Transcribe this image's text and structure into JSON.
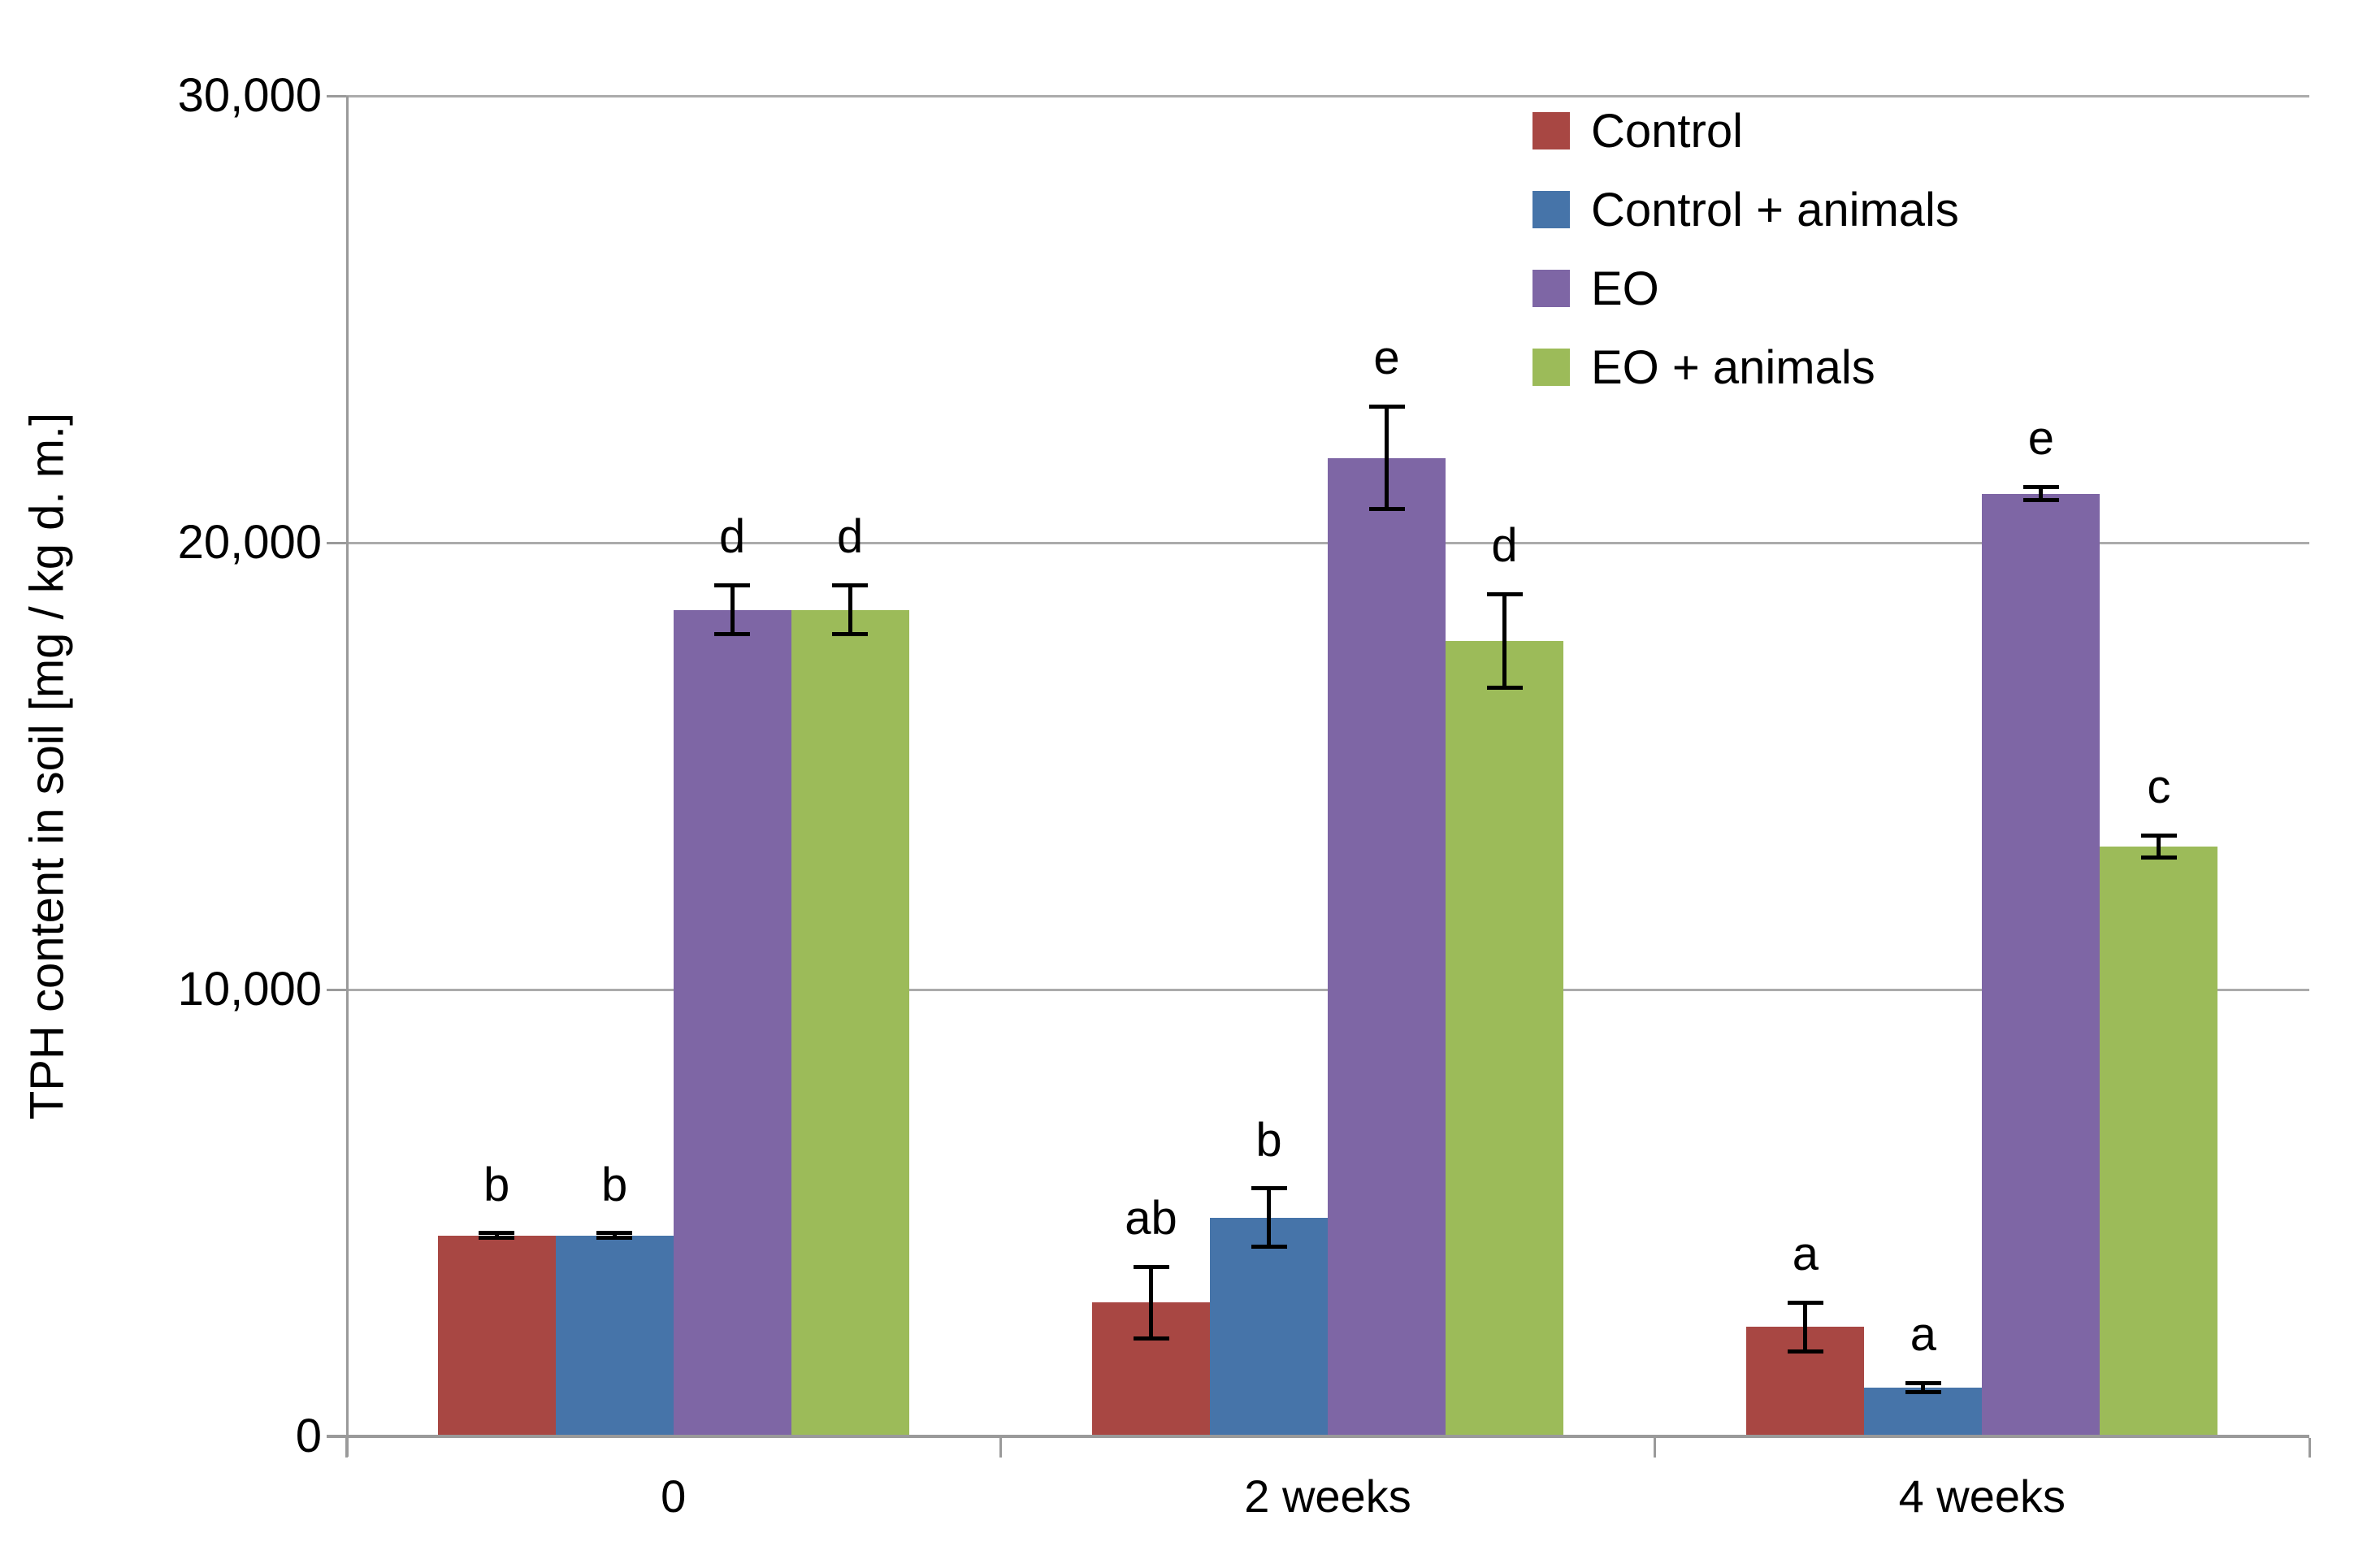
{
  "figure": {
    "background": "#FFFFFF",
    "grid_color": "#ABABAB",
    "axis_color": "#9A9A9A",
    "text_color": "#000000"
  },
  "chart_data": {
    "type": "bar",
    "title": "",
    "xlabel": "",
    "ylabel": "TPH content in soil [mg / kg d. m.]",
    "ylim": [
      0,
      30000
    ],
    "ytick_values": [
      0,
      10000,
      20000,
      30000
    ],
    "ytick_labels": [
      "0",
      "10,000",
      "20,000",
      "30,000"
    ],
    "grid": "horizontal gridlines at each y tick",
    "legend_position": "top-right",
    "error_bars": true,
    "categories": [
      "0",
      "2 weeks",
      "4 weeks"
    ],
    "series": [
      {
        "name": "Control",
        "color": "#A84743",
        "values": [
          4500,
          3000,
          2450
        ],
        "errors": [
          50,
          800,
          550
        ],
        "sig_letters": [
          "b",
          "ab",
          "a"
        ]
      },
      {
        "name": "Control + animals",
        "color": "#4674A9",
        "values": [
          4500,
          4900,
          1100
        ],
        "errors": [
          50,
          650,
          100
        ],
        "sig_letters": [
          "b",
          "b",
          "a"
        ]
      },
      {
        "name": "EO",
        "color": "#7E66A5",
        "values": [
          18500,
          21900,
          21100
        ],
        "errors": [
          550,
          1150,
          150
        ],
        "sig_letters": [
          "d",
          "e",
          "e"
        ]
      },
      {
        "name": "EO + animals",
        "color": "#9CBB59",
        "values": [
          18500,
          17800,
          13200
        ],
        "errors": [
          550,
          1050,
          250
        ],
        "sig_letters": [
          "d",
          "d",
          "c"
        ]
      }
    ]
  }
}
